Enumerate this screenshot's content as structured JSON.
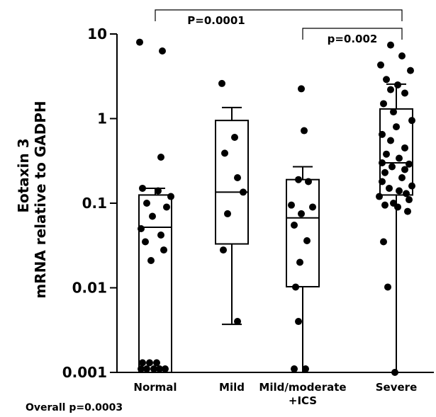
{
  "chart_data": {
    "type": "box",
    "ylabel_line1": "Eotaxin 3",
    "ylabel_line2": "mRNA relative to GADPH",
    "yscale": "log",
    "ylim": [
      0.001,
      10
    ],
    "yticks": [
      10,
      1,
      0.1,
      0.01,
      0.001
    ],
    "ytick_labels": [
      "10",
      "1",
      "0.1",
      "0.01",
      "0.001"
    ],
    "categories": [
      "Normal",
      "Mild",
      "Mild/moderate\n+ICS",
      "Severe"
    ],
    "category_lines": [
      [
        "Normal"
      ],
      [
        "Mild"
      ],
      [
        "Mild/moderate",
        "+ICS"
      ],
      [
        "Severe"
      ]
    ],
    "boxes": [
      {
        "name": "Normal",
        "whisker_low": 0.001,
        "q1": 0.001,
        "median": 0.052,
        "q3": 0.125,
        "whisker_high": 0.15
      },
      {
        "name": "Mild",
        "whisker_low": 0.0037,
        "q1": 0.033,
        "median": 0.135,
        "q3": 0.95,
        "whisker_high": 1.35
      },
      {
        "name": "Mild/moderate\n+ICS",
        "whisker_low": 0.001,
        "q1": 0.0103,
        "median": 0.067,
        "q3": 0.19,
        "whisker_high": 0.27
      },
      {
        "name": "Severe",
        "whisker_low": 0.001,
        "q1": 0.125,
        "median": 0.3,
        "q3": 1.3,
        "whisker_high": 2.55
      }
    ],
    "points": [
      [
        8.0,
        6.3,
        0.35,
        0.15,
        0.14,
        0.12,
        0.1,
        0.09,
        0.07,
        0.05,
        0.042,
        0.035,
        0.028,
        0.021,
        0.0013,
        0.0013,
        0.0013,
        0.0011,
        0.0011,
        0.0011,
        0.0011,
        0.0011
      ],
      [
        2.6,
        0.6,
        0.39,
        0.2,
        0.135,
        0.075,
        0.028,
        0.004
      ],
      [
        2.25,
        0.72,
        0.19,
        0.18,
        0.095,
        0.09,
        0.075,
        0.055,
        0.036,
        0.02,
        0.0102,
        0.004,
        0.0011,
        0.0011
      ],
      [
        7.4,
        5.5,
        4.3,
        3.7,
        2.9,
        2.5,
        2.2,
        2.0,
        1.5,
        1.2,
        0.95,
        0.8,
        0.65,
        0.55,
        0.45,
        0.38,
        0.34,
        0.3,
        0.29,
        0.27,
        0.25,
        0.23,
        0.2,
        0.18,
        0.16,
        0.15,
        0.14,
        0.13,
        0.12,
        0.11,
        0.1,
        0.095,
        0.09,
        0.08,
        0.035,
        0.0102,
        0.001
      ]
    ],
    "comparisons": [
      {
        "label": "P=0.0001",
        "from": 0,
        "to": 3
      },
      {
        "label": "p=0.002",
        "from": 2,
        "to": 3
      }
    ]
  },
  "footnote": "Overall p=0.0003"
}
